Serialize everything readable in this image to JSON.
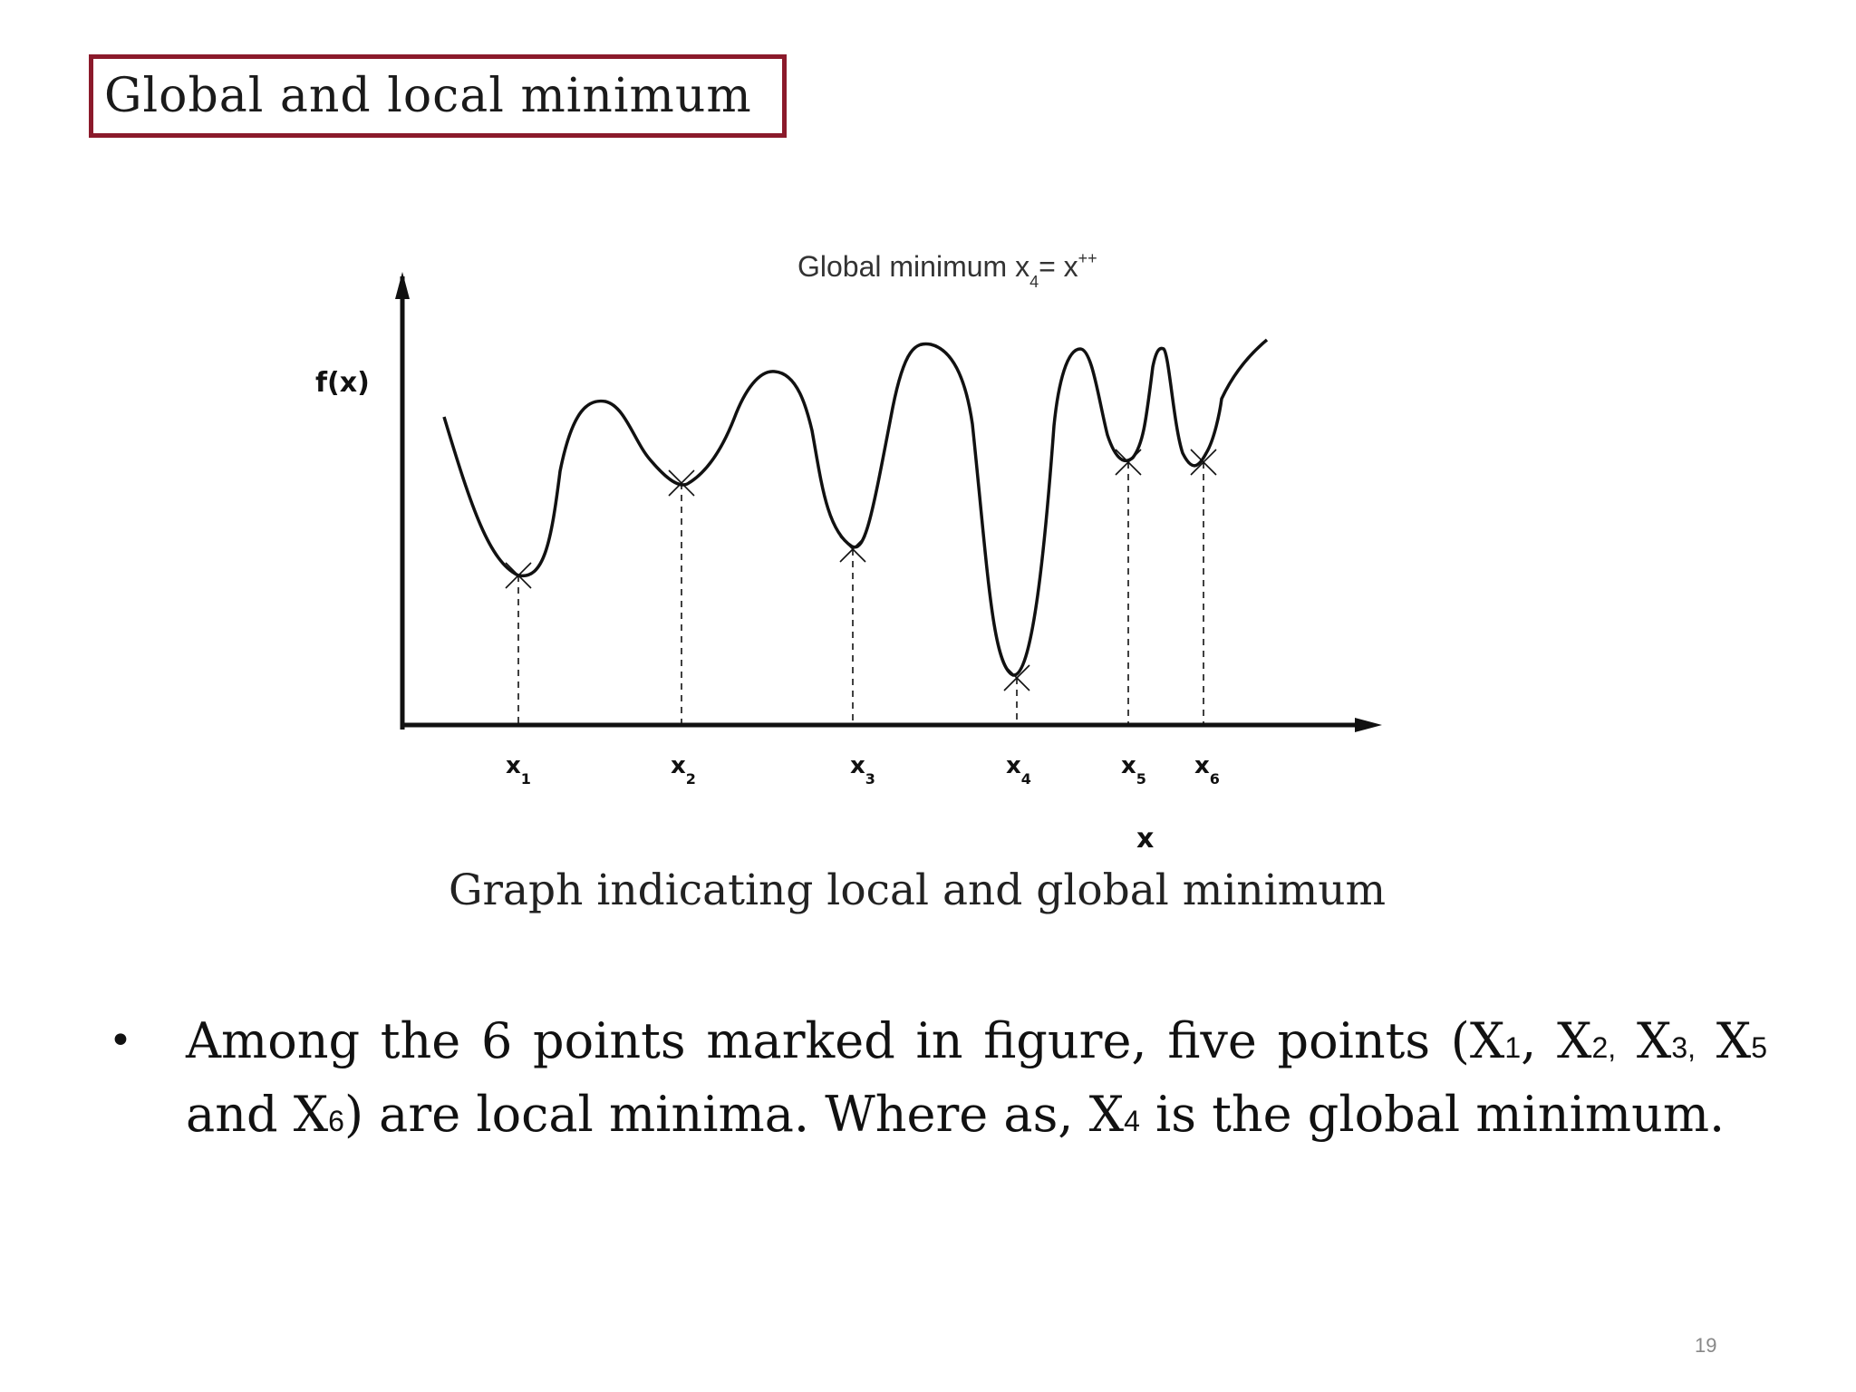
{
  "slide": {
    "title": "Global and local minimum",
    "page_number": "19",
    "caption": "Graph indicating local and global minimum"
  },
  "figure": {
    "y_axis_label": "f(x)",
    "x_axis_label": "x",
    "annotation": {
      "prefix": "Global minimum  x",
      "index": "4",
      "middle": "=  x",
      "superscript": "++"
    },
    "points": [
      {
        "base": "x",
        "sub": "1"
      },
      {
        "base": "x",
        "sub": "2"
      },
      {
        "base": "x",
        "sub": "3"
      },
      {
        "base": "x",
        "sub": "4"
      },
      {
        "base": "x",
        "sub": "5"
      },
      {
        "base": "x",
        "sub": "6"
      }
    ]
  },
  "bullet": {
    "marker": "•",
    "part1": "Among the 6 points marked in figure, five points (X",
    "s1": "1",
    "part2": ", X",
    "s2": "2,",
    "part3": " X",
    "s3": "3,",
    "part4": " X",
    "s5": "5",
    "part5": " and X",
    "s6": "6",
    "part6": ") are local minima. Where as, X",
    "s4": "4",
    "part7": " is the global minimum."
  },
  "colors": {
    "title_border": "#8b1a2b"
  }
}
